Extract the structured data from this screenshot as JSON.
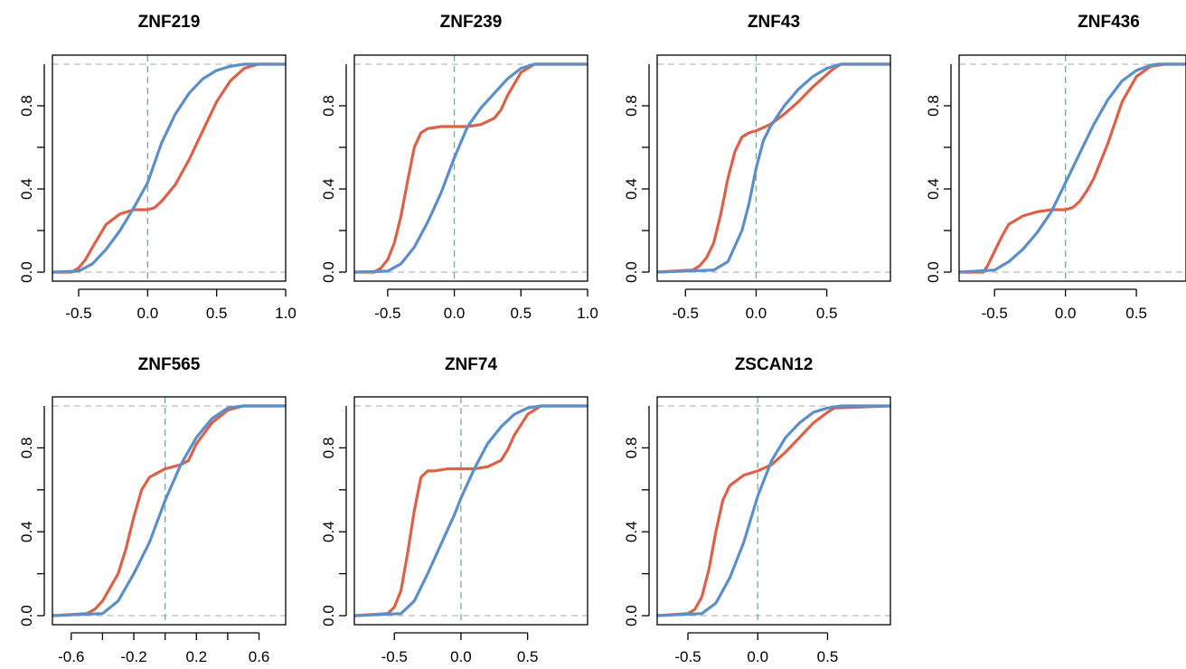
{
  "colors": {
    "blue": "#5b8fc8",
    "red": "#dd6146",
    "reference": "#b8bcbc",
    "zero_line": "#7aa89a"
  },
  "chart_data": [
    {
      "type": "line",
      "title": "ZNF219",
      "xlabel": "",
      "ylabel": "",
      "xlim": [
        -0.69,
        1.0
      ],
      "ylim": [
        0,
        1
      ],
      "xticks": [
        -0.5,
        0.0,
        0.5,
        1.0
      ],
      "xtick_labels": [
        "-0.5",
        "0.0",
        "0.5",
        "1.0"
      ],
      "yticks": [
        0.0,
        0.4,
        0.8
      ],
      "ytick_labels": [
        "0.0",
        "0.4",
        "0.8"
      ],
      "reference_lines": [
        0,
        1
      ],
      "vline": 0,
      "series": [
        {
          "color": "blue",
          "x": [
            -0.69,
            -0.5,
            -0.4,
            -0.3,
            -0.2,
            -0.1,
            0.0,
            0.1,
            0.2,
            0.3,
            0.4,
            0.5,
            0.6,
            0.7,
            0.8,
            1.0
          ],
          "y": [
            0,
            0.005,
            0.04,
            0.11,
            0.2,
            0.31,
            0.43,
            0.62,
            0.76,
            0.86,
            0.93,
            0.97,
            0.99,
            1,
            1,
            1
          ]
        },
        {
          "color": "red",
          "x": [
            -0.69,
            -0.55,
            -0.5,
            -0.45,
            -0.4,
            -0.3,
            -0.2,
            -0.1,
            0.0,
            0.05,
            0.1,
            0.2,
            0.3,
            0.4,
            0.5,
            0.6,
            0.7,
            0.8,
            0.85,
            1.0
          ],
          "y": [
            0,
            0,
            0.02,
            0.06,
            0.12,
            0.23,
            0.28,
            0.3,
            0.3,
            0.31,
            0.34,
            0.42,
            0.54,
            0.68,
            0.82,
            0.92,
            0.98,
            1,
            1,
            1
          ]
        }
      ]
    },
    {
      "type": "line",
      "title": "ZNF239",
      "xlabel": "",
      "ylabel": "",
      "xlim": [
        -0.75,
        1.0
      ],
      "ylim": [
        0,
        1
      ],
      "xticks": [
        -0.5,
        0.0,
        0.5,
        1.0
      ],
      "xtick_labels": [
        "-0.5",
        "0.0",
        "0.5",
        "1.0"
      ],
      "yticks": [
        0.0,
        0.4,
        0.8
      ],
      "ytick_labels": [
        "0.0",
        "0.4",
        "0.8"
      ],
      "reference_lines": [
        0,
        1
      ],
      "vline": 0,
      "series": [
        {
          "color": "blue",
          "x": [
            -0.75,
            -0.5,
            -0.4,
            -0.3,
            -0.2,
            -0.1,
            0.0,
            0.1,
            0.2,
            0.3,
            0.4,
            0.5,
            0.6,
            0.7,
            1.0
          ],
          "y": [
            0,
            0.005,
            0.04,
            0.12,
            0.24,
            0.38,
            0.55,
            0.7,
            0.79,
            0.86,
            0.93,
            0.98,
            1,
            1,
            1
          ]
        },
        {
          "color": "red",
          "x": [
            -0.75,
            -0.6,
            -0.55,
            -0.5,
            -0.45,
            -0.4,
            -0.35,
            -0.3,
            -0.25,
            -0.2,
            -0.1,
            0.0,
            0.1,
            0.2,
            0.3,
            0.35,
            0.4,
            0.5,
            0.6,
            0.7,
            1.0
          ],
          "y": [
            0,
            0,
            0.02,
            0.06,
            0.14,
            0.27,
            0.44,
            0.6,
            0.67,
            0.69,
            0.7,
            0.7,
            0.7,
            0.71,
            0.74,
            0.78,
            0.85,
            0.96,
            1,
            1,
            1
          ]
        }
      ]
    },
    {
      "type": "line",
      "title": "ZNF43",
      "xlabel": "",
      "ylabel": "",
      "xlim": [
        -0.7,
        0.95
      ],
      "ylim": [
        0,
        1
      ],
      "xticks": [
        -0.5,
        0.0,
        0.5
      ],
      "xtick_labels": [
        "-0.5",
        "0.0",
        "0.5"
      ],
      "yticks": [
        0.0,
        0.4,
        0.8
      ],
      "ytick_labels": [
        "0.0",
        "0.4",
        "0.8"
      ],
      "reference_lines": [
        0,
        1
      ],
      "vline": 0,
      "series": [
        {
          "color": "blue",
          "x": [
            -0.7,
            -0.3,
            -0.2,
            -0.1,
            -0.05,
            0.0,
            0.05,
            0.1,
            0.2,
            0.3,
            0.4,
            0.5,
            0.6,
            0.95
          ],
          "y": [
            0,
            0.01,
            0.05,
            0.2,
            0.33,
            0.5,
            0.63,
            0.7,
            0.8,
            0.88,
            0.94,
            0.98,
            1,
            1
          ]
        },
        {
          "color": "red",
          "x": [
            -0.7,
            -0.45,
            -0.4,
            -0.35,
            -0.3,
            -0.25,
            -0.2,
            -0.15,
            -0.1,
            -0.05,
            0.0,
            0.1,
            0.2,
            0.3,
            0.4,
            0.5,
            0.55,
            0.6,
            0.95
          ],
          "y": [
            0,
            0.01,
            0.03,
            0.07,
            0.14,
            0.28,
            0.45,
            0.58,
            0.65,
            0.67,
            0.68,
            0.71,
            0.76,
            0.82,
            0.89,
            0.95,
            0.98,
            1,
            1
          ]
        }
      ]
    },
    {
      "type": "line",
      "title": "ZNF436",
      "xlabel": "",
      "ylabel": "",
      "xlim": [
        -0.75,
        0.85
      ],
      "ylim": [
        0,
        1
      ],
      "xticks": [
        -0.5,
        0.0,
        0.5
      ],
      "xtick_labels": [
        "-0.5",
        "0.0",
        "0.5"
      ],
      "yticks": [
        0.0,
        0.4,
        0.8
      ],
      "ytick_labels": [
        "0.0",
        "0.4",
        "0.8"
      ],
      "reference_lines": [
        0,
        1
      ],
      "vline": 0,
      "series": [
        {
          "color": "blue",
          "x": [
            -0.75,
            -0.5,
            -0.4,
            -0.3,
            -0.2,
            -0.1,
            0.0,
            0.1,
            0.2,
            0.3,
            0.4,
            0.5,
            0.6,
            0.65,
            0.85
          ],
          "y": [
            0,
            0.01,
            0.05,
            0.11,
            0.19,
            0.29,
            0.43,
            0.57,
            0.71,
            0.83,
            0.92,
            0.97,
            0.995,
            1,
            1
          ]
        },
        {
          "color": "red",
          "x": [
            -0.75,
            -0.58,
            -0.55,
            -0.5,
            -0.45,
            -0.4,
            -0.3,
            -0.2,
            -0.1,
            0.0,
            0.05,
            0.1,
            0.15,
            0.2,
            0.3,
            0.4,
            0.5,
            0.6,
            0.7,
            0.85
          ],
          "y": [
            0,
            0,
            0.03,
            0.1,
            0.17,
            0.23,
            0.27,
            0.29,
            0.3,
            0.3,
            0.31,
            0.34,
            0.39,
            0.45,
            0.62,
            0.82,
            0.94,
            0.99,
            1,
            1
          ]
        }
      ]
    },
    {
      "type": "line",
      "title": "ZNF565",
      "xlabel": "",
      "ylabel": "",
      "xlim": [
        -0.72,
        0.77
      ],
      "ylim": [
        0,
        1
      ],
      "xticks": [
        -0.6,
        -0.4,
        -0.2,
        0.0,
        0.2,
        0.4,
        0.6
      ],
      "xtick_labels": [
        "-0.6",
        "",
        "-0.2",
        "",
        "0.2",
        "",
        "0.6"
      ],
      "yticks": [
        0.0,
        0.4,
        0.8
      ],
      "ytick_labels": [
        "0.0",
        "0.4",
        "0.8"
      ],
      "reference_lines": [
        0,
        1
      ],
      "vline": 0,
      "series": [
        {
          "color": "blue",
          "x": [
            -0.72,
            -0.4,
            -0.3,
            -0.2,
            -0.1,
            0.0,
            0.1,
            0.2,
            0.3,
            0.4,
            0.5,
            0.77
          ],
          "y": [
            0,
            0.01,
            0.07,
            0.2,
            0.35,
            0.55,
            0.72,
            0.85,
            0.94,
            0.99,
            1,
            1
          ]
        },
        {
          "color": "red",
          "x": [
            -0.72,
            -0.5,
            -0.45,
            -0.4,
            -0.3,
            -0.25,
            -0.2,
            -0.15,
            -0.1,
            -0.05,
            0.0,
            0.1,
            0.15,
            0.2,
            0.3,
            0.4,
            0.5,
            0.77
          ],
          "y": [
            0,
            0.01,
            0.03,
            0.07,
            0.2,
            0.32,
            0.47,
            0.6,
            0.66,
            0.68,
            0.7,
            0.72,
            0.74,
            0.82,
            0.92,
            0.98,
            1,
            1
          ]
        }
      ]
    },
    {
      "type": "line",
      "title": "ZNF74",
      "xlabel": "",
      "ylabel": "",
      "xlim": [
        -0.8,
        0.95
      ],
      "ylim": [
        0,
        1
      ],
      "xticks": [
        -0.5,
        0.0,
        0.5
      ],
      "xtick_labels": [
        "-0.5",
        "0.0",
        "0.5"
      ],
      "yticks": [
        0.0,
        0.4,
        0.8
      ],
      "ytick_labels": [
        "0.0",
        "0.4",
        "0.8"
      ],
      "reference_lines": [
        0,
        1
      ],
      "vline": 0,
      "series": [
        {
          "color": "blue",
          "x": [
            -0.8,
            -0.45,
            -0.35,
            -0.25,
            -0.15,
            -0.05,
            0.0,
            0.1,
            0.2,
            0.3,
            0.4,
            0.5,
            0.6,
            0.95
          ],
          "y": [
            0,
            0.01,
            0.07,
            0.2,
            0.34,
            0.48,
            0.56,
            0.7,
            0.82,
            0.9,
            0.96,
            0.99,
            1,
            1
          ]
        },
        {
          "color": "red",
          "x": [
            -0.8,
            -0.55,
            -0.5,
            -0.45,
            -0.4,
            -0.35,
            -0.3,
            -0.25,
            -0.2,
            -0.1,
            0.0,
            0.1,
            0.2,
            0.3,
            0.35,
            0.4,
            0.5,
            0.6,
            0.95
          ],
          "y": [
            0,
            0.01,
            0.04,
            0.12,
            0.3,
            0.5,
            0.66,
            0.69,
            0.69,
            0.7,
            0.7,
            0.7,
            0.71,
            0.74,
            0.79,
            0.86,
            0.96,
            1,
            1
          ]
        }
      ]
    },
    {
      "type": "line",
      "title": "ZSCAN12",
      "xlabel": "",
      "ylabel": "",
      "xlim": [
        -0.72,
        0.95
      ],
      "ylim": [
        0,
        1
      ],
      "xticks": [
        -0.5,
        0.0,
        0.5
      ],
      "xtick_labels": [
        "-0.5",
        "0.0",
        "0.5"
      ],
      "yticks": [
        0.0,
        0.4,
        0.8
      ],
      "ytick_labels": [
        "0.0",
        "0.4",
        "0.8"
      ],
      "reference_lines": [
        0,
        1
      ],
      "vline": 0,
      "series": [
        {
          "color": "blue",
          "x": [
            -0.72,
            -0.4,
            -0.3,
            -0.2,
            -0.1,
            0.0,
            0.1,
            0.2,
            0.3,
            0.4,
            0.5,
            0.6,
            0.95
          ],
          "y": [
            0,
            0.01,
            0.06,
            0.18,
            0.35,
            0.57,
            0.74,
            0.85,
            0.92,
            0.97,
            0.99,
            1,
            1
          ]
        },
        {
          "color": "red",
          "x": [
            -0.72,
            -0.5,
            -0.45,
            -0.4,
            -0.35,
            -0.3,
            -0.25,
            -0.2,
            -0.1,
            0.0,
            0.1,
            0.2,
            0.3,
            0.4,
            0.5,
            0.55,
            0.95
          ],
          "y": [
            0,
            0.01,
            0.03,
            0.09,
            0.22,
            0.4,
            0.55,
            0.62,
            0.67,
            0.69,
            0.72,
            0.78,
            0.85,
            0.92,
            0.97,
            0.99,
            1
          ]
        }
      ]
    }
  ]
}
